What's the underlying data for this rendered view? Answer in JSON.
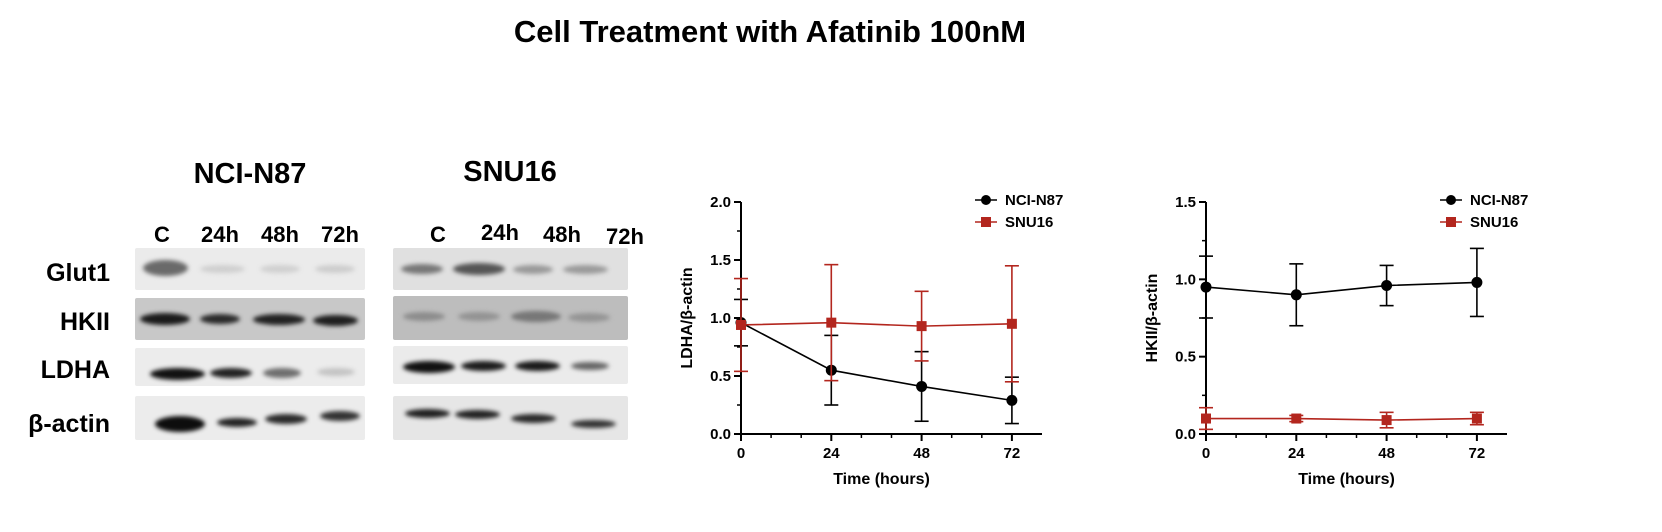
{
  "title": "Cell Treatment with Afatinib 100nM",
  "blots": {
    "row_labels": [
      "Glut1",
      "HKII",
      "LDHA",
      "β-actin"
    ],
    "panels": [
      {
        "name": "NCI-N87",
        "lanes": [
          "C",
          "24h",
          "48h",
          "72h"
        ]
      },
      {
        "name": "SNU16",
        "lanes": [
          "C",
          "24h",
          "48h",
          "72h"
        ]
      }
    ]
  },
  "chart_data": [
    {
      "type": "line",
      "title": "",
      "xlabel": "Time (hours)",
      "ylabel": "LDHA/β-actin",
      "x": [
        0,
        24,
        48,
        72
      ],
      "xticks": [
        "0",
        "24",
        "48",
        "72"
      ],
      "yticks": [
        "0.0",
        "0.5",
        "1.0",
        "1.5",
        "2.0"
      ],
      "ylim": [
        0,
        2.0
      ],
      "xlim": [
        0,
        80
      ],
      "legend": "top-right",
      "series": [
        {
          "name": "NCI-N87",
          "color": "#000000",
          "marker": "circle",
          "values": [
            0.96,
            0.55,
            0.41,
            0.29
          ],
          "errors": [
            0.2,
            0.3,
            0.3,
            0.2
          ]
        },
        {
          "name": "SNU16",
          "color": "#b3261e",
          "marker": "square",
          "values": [
            0.94,
            0.96,
            0.93,
            0.95
          ],
          "errors": [
            0.4,
            0.5,
            0.3,
            0.5
          ]
        }
      ]
    },
    {
      "type": "line",
      "title": "",
      "xlabel": "Time (hours)",
      "ylabel": "HKII/β-actin",
      "x": [
        0,
        24,
        48,
        72
      ],
      "xticks": [
        "0",
        "24",
        "48",
        "72"
      ],
      "yticks": [
        "0.0",
        "0.5",
        "1.0",
        "1.5"
      ],
      "ylim": [
        0,
        1.5
      ],
      "xlim": [
        0,
        80
      ],
      "legend": "top-right",
      "series": [
        {
          "name": "NCI-N87",
          "color": "#000000",
          "marker": "circle",
          "values": [
            0.95,
            0.9,
            0.96,
            0.98
          ],
          "errors": [
            0.2,
            0.2,
            0.13,
            0.22
          ]
        },
        {
          "name": "SNU16",
          "color": "#b3261e",
          "marker": "square",
          "values": [
            0.1,
            0.1,
            0.09,
            0.1
          ],
          "errors": [
            0.07,
            0.02,
            0.05,
            0.04
          ]
        }
      ]
    }
  ]
}
